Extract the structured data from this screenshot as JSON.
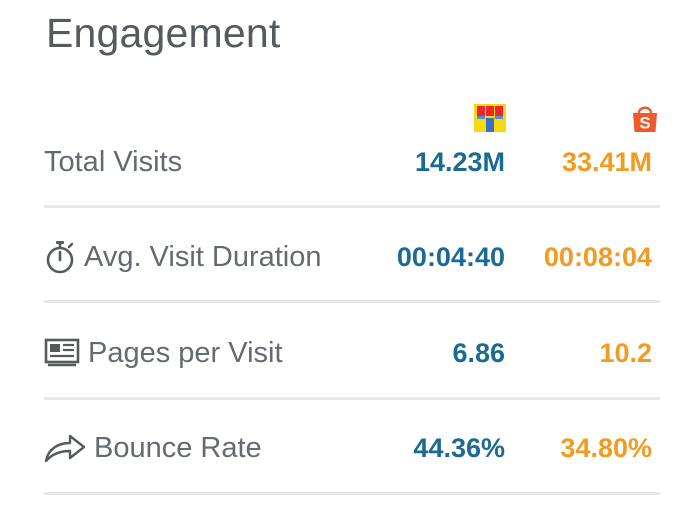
{
  "header": {
    "title": "Engagement"
  },
  "brands": [
    {
      "icon": "store-awning-logo-icon"
    },
    {
      "icon": "shopping-bag-s-logo-icon",
      "letter": "S",
      "color": "#f1592a"
    }
  ],
  "colors": {
    "brand_a_value": "#1b6a93",
    "brand_b_value": "#f39a21",
    "label": "#646a6f",
    "divider": "#e6e7e8"
  },
  "metrics": [
    {
      "label": "Total Visits",
      "icon": null,
      "value_a": "14.23M",
      "value_b": "33.41M"
    },
    {
      "label": "Avg. Visit Duration",
      "icon": "stopwatch-icon",
      "value_a": "00:04:40",
      "value_b": "00:08:04"
    },
    {
      "label": "Pages per Visit",
      "icon": "pages-icon",
      "value_a": "6.86",
      "value_b": "10.2"
    },
    {
      "label": "Bounce Rate",
      "icon": "share-arrow-icon",
      "value_a": "44.36%",
      "value_b": "34.80%"
    }
  ]
}
